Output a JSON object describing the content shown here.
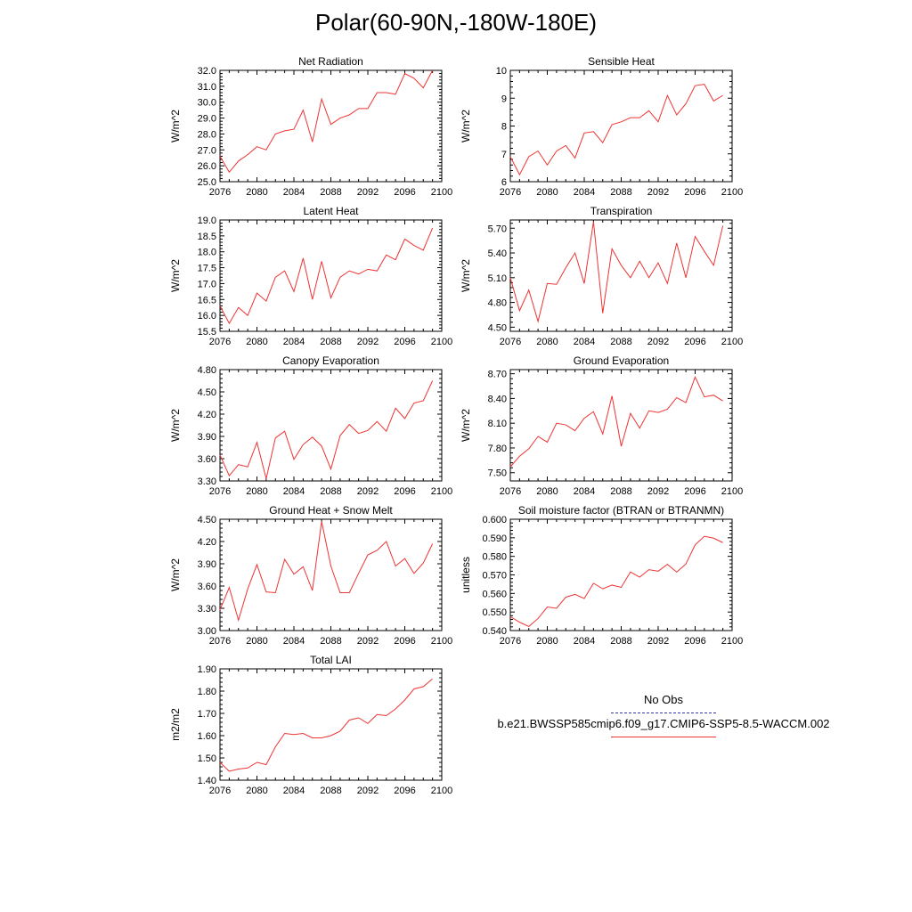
{
  "figure": {
    "title": "Polar(60-90N,-180W-180E)"
  },
  "legend": {
    "entries": [
      {
        "label": "No Obs",
        "color": "#3333aa",
        "style": "dashed"
      },
      {
        "label": "b.e21.BWSSP585cmip6.f09_g17.CMIP6-SSP5-8.5-WACCM.002",
        "color": "#ee3333",
        "style": "solid"
      }
    ]
  },
  "chart_data": [
    {
      "type": "line",
      "title": "Net Radiation",
      "ylabel": "W/m^2",
      "xlim": [
        2076,
        2100
      ],
      "ylim": [
        25.0,
        32.0
      ],
      "xticks": [
        2076,
        2080,
        2084,
        2088,
        2092,
        2096,
        2100
      ],
      "yticks": [
        25.0,
        26.0,
        27.0,
        28.0,
        29.0,
        30.0,
        31.0,
        32.0
      ],
      "ydec": 1,
      "series": [
        {
          "name": "b.e21.BWSSP585cmip6.f09_g17.CMIP6-SSP5-8.5-WACCM.002",
          "color": "#ee3333",
          "x": [
            2076,
            2077,
            2078,
            2079,
            2080,
            2081,
            2082,
            2083,
            2084,
            2085,
            2086,
            2087,
            2088,
            2089,
            2090,
            2091,
            2092,
            2093,
            2094,
            2095,
            2096,
            2097,
            2098,
            2099
          ],
          "values": [
            26.6,
            25.6,
            26.3,
            26.7,
            27.2,
            27.0,
            28.0,
            28.2,
            28.3,
            29.5,
            27.5,
            30.2,
            28.6,
            29.0,
            29.2,
            29.6,
            29.6,
            30.6,
            30.6,
            30.5,
            31.8,
            31.5,
            30.9,
            32.0
          ]
        }
      ]
    },
    {
      "type": "line",
      "title": "Sensible Heat",
      "ylabel": "W/m^2",
      "xlim": [
        2076,
        2100
      ],
      "ylim": [
        6,
        10
      ],
      "xticks": [
        2076,
        2080,
        2084,
        2088,
        2092,
        2096,
        2100
      ],
      "yticks": [
        6,
        7,
        8,
        9,
        10
      ],
      "ydec": 0,
      "series": [
        {
          "name": "b.e21.BWSSP585cmip6.f09_g17.CMIP6-SSP5-8.5-WACCM.002",
          "color": "#ee3333",
          "x": [
            2076,
            2077,
            2078,
            2079,
            2080,
            2081,
            2082,
            2083,
            2084,
            2085,
            2086,
            2087,
            2088,
            2089,
            2090,
            2091,
            2092,
            2093,
            2094,
            2095,
            2096,
            2097,
            2098,
            2099
          ],
          "values": [
            6.9,
            6.25,
            6.9,
            7.1,
            6.6,
            7.1,
            7.3,
            6.85,
            7.75,
            7.8,
            7.4,
            8.05,
            8.15,
            8.3,
            8.3,
            8.55,
            8.15,
            9.1,
            8.4,
            8.8,
            9.45,
            9.5,
            8.9,
            9.1
          ]
        }
      ]
    },
    {
      "type": "line",
      "title": "Latent Heat",
      "ylabel": "W/m^2",
      "xlim": [
        2076,
        2100
      ],
      "ylim": [
        15.5,
        19.0
      ],
      "xticks": [
        2076,
        2080,
        2084,
        2088,
        2092,
        2096,
        2100
      ],
      "yticks": [
        15.5,
        16.0,
        16.5,
        17.0,
        17.5,
        18.0,
        18.5,
        19.0
      ],
      "ydec": 1,
      "series": [
        {
          "name": "b.e21.BWSSP585cmip6.f09_g17.CMIP6-SSP5-8.5-WACCM.002",
          "color": "#ee3333",
          "x": [
            2076,
            2077,
            2078,
            2079,
            2080,
            2081,
            2082,
            2083,
            2084,
            2085,
            2086,
            2087,
            2088,
            2089,
            2090,
            2091,
            2092,
            2093,
            2094,
            2095,
            2096,
            2097,
            2098,
            2099
          ],
          "values": [
            16.3,
            15.75,
            16.25,
            16.0,
            16.7,
            16.45,
            17.2,
            17.4,
            16.75,
            17.8,
            16.5,
            17.7,
            16.55,
            17.2,
            17.4,
            17.3,
            17.45,
            17.4,
            17.9,
            17.75,
            18.4,
            18.2,
            18.05,
            18.75
          ]
        }
      ]
    },
    {
      "type": "line",
      "title": "Transpiration",
      "ylabel": "W/m^2",
      "xlim": [
        2076,
        2100
      ],
      "ylim": [
        4.45,
        5.8
      ],
      "xticks": [
        2076,
        2080,
        2084,
        2088,
        2092,
        2096,
        2100
      ],
      "yticks": [
        4.5,
        4.8,
        5.1,
        5.4,
        5.7
      ],
      "ydec": 2,
      "series": [
        {
          "name": "b.e21.BWSSP585cmip6.f09_g17.CMIP6-SSP5-8.5-WACCM.002",
          "color": "#ee3333",
          "x": [
            2076,
            2077,
            2078,
            2079,
            2080,
            2081,
            2082,
            2083,
            2084,
            2085,
            2086,
            2087,
            2088,
            2089,
            2090,
            2091,
            2092,
            2093,
            2094,
            2095,
            2096,
            2097,
            2098,
            2099
          ],
          "values": [
            5.1,
            4.7,
            4.95,
            4.57,
            5.03,
            5.02,
            5.22,
            5.4,
            5.03,
            5.78,
            4.67,
            5.45,
            5.25,
            5.1,
            5.3,
            5.1,
            5.28,
            5.03,
            5.52,
            5.1,
            5.6,
            5.42,
            5.25,
            5.73
          ]
        }
      ]
    },
    {
      "type": "line",
      "title": "Canopy Evaporation",
      "ylabel": "W/m^2",
      "xlim": [
        2076,
        2100
      ],
      "ylim": [
        3.3,
        4.8
      ],
      "xticks": [
        2076,
        2080,
        2084,
        2088,
        2092,
        2096,
        2100
      ],
      "yticks": [
        3.3,
        3.6,
        3.9,
        4.2,
        4.5,
        4.8
      ],
      "ydec": 2,
      "series": [
        {
          "name": "b.e21.BWSSP585cmip6.f09_g17.CMIP6-SSP5-8.5-WACCM.002",
          "color": "#ee3333",
          "x": [
            2076,
            2077,
            2078,
            2079,
            2080,
            2081,
            2082,
            2083,
            2084,
            2085,
            2086,
            2087,
            2088,
            2089,
            2090,
            2091,
            2092,
            2093,
            2094,
            2095,
            2096,
            2097,
            2098,
            2099
          ],
          "values": [
            3.65,
            3.37,
            3.52,
            3.49,
            3.82,
            3.33,
            3.88,
            3.97,
            3.59,
            3.79,
            3.89,
            3.77,
            3.46,
            3.91,
            4.06,
            3.94,
            3.98,
            4.1,
            3.97,
            4.28,
            4.14,
            4.35,
            4.38,
            4.65
          ]
        }
      ]
    },
    {
      "type": "line",
      "title": "Ground Evaporation",
      "ylabel": "W/m^2",
      "xlim": [
        2076,
        2100
      ],
      "ylim": [
        7.4,
        8.75
      ],
      "xticks": [
        2076,
        2080,
        2084,
        2088,
        2092,
        2096,
        2100
      ],
      "yticks": [
        7.5,
        7.8,
        8.1,
        8.4,
        8.7
      ],
      "ydec": 2,
      "series": [
        {
          "name": "b.e21.BWSSP585cmip6.f09_g17.CMIP6-SSP5-8.5-WACCM.002",
          "color": "#ee3333",
          "x": [
            2076,
            2077,
            2078,
            2079,
            2080,
            2081,
            2082,
            2083,
            2084,
            2085,
            2086,
            2087,
            2088,
            2089,
            2090,
            2091,
            2092,
            2093,
            2094,
            2095,
            2096,
            2097,
            2098,
            2099
          ],
          "values": [
            7.57,
            7.7,
            7.79,
            7.94,
            7.87,
            8.1,
            8.08,
            8.01,
            8.16,
            8.24,
            7.97,
            8.43,
            7.82,
            8.22,
            8.04,
            8.25,
            8.23,
            8.27,
            8.41,
            8.35,
            8.66,
            8.42,
            8.44,
            8.37
          ]
        }
      ]
    },
    {
      "type": "line",
      "title": "Ground Heat + Snow Melt",
      "ylabel": "W/m^2",
      "xlim": [
        2076,
        2100
      ],
      "ylim": [
        3.0,
        4.5
      ],
      "xticks": [
        2076,
        2080,
        2084,
        2088,
        2092,
        2096,
        2100
      ],
      "yticks": [
        3.0,
        3.3,
        3.6,
        3.9,
        4.2,
        4.5
      ],
      "ydec": 2,
      "series": [
        {
          "name": "b.e21.BWSSP585cmip6.f09_g17.CMIP6-SSP5-8.5-WACCM.002",
          "color": "#ee3333",
          "x": [
            2076,
            2077,
            2078,
            2079,
            2080,
            2081,
            2082,
            2083,
            2084,
            2085,
            2086,
            2087,
            2088,
            2089,
            2090,
            2091,
            2092,
            2093,
            2094,
            2095,
            2096,
            2097,
            2098,
            2099
          ],
          "values": [
            3.28,
            3.58,
            3.14,
            3.56,
            3.89,
            3.52,
            3.51,
            3.96,
            3.76,
            3.86,
            3.54,
            4.47,
            3.87,
            3.51,
            3.51,
            3.77,
            4.02,
            4.08,
            4.2,
            3.87,
            3.97,
            3.77,
            3.91,
            4.17
          ]
        }
      ]
    },
    {
      "type": "line",
      "title": "Soil moisture factor (BTRAN or BTRANMN)",
      "ylabel": "unitless",
      "xlim": [
        2076,
        2100
      ],
      "ylim": [
        0.54,
        0.6
      ],
      "xticks": [
        2076,
        2080,
        2084,
        2088,
        2092,
        2096,
        2100
      ],
      "yticks": [
        0.54,
        0.55,
        0.56,
        0.57,
        0.58,
        0.59,
        0.6
      ],
      "ydec": 3,
      "series": [
        {
          "name": "b.e21.BWSSP585cmip6.f09_g17.CMIP6-SSP5-8.5-WACCM.002",
          "color": "#ee3333",
          "x": [
            2076,
            2077,
            2078,
            2079,
            2080,
            2081,
            2082,
            2083,
            2084,
            2085,
            2086,
            2087,
            2088,
            2089,
            2090,
            2091,
            2092,
            2093,
            2094,
            2095,
            2096,
            2097,
            2098,
            2099
          ],
          "values": [
            0.5475,
            0.5445,
            0.5422,
            0.5465,
            0.5527,
            0.552,
            0.558,
            0.5595,
            0.5573,
            0.5655,
            0.5625,
            0.5645,
            0.5633,
            0.5716,
            0.5688,
            0.5728,
            0.572,
            0.5757,
            0.5715,
            0.5759,
            0.5862,
            0.5908,
            0.5898,
            0.5874
          ]
        }
      ]
    },
    {
      "type": "line",
      "title": "Total LAI",
      "ylabel": "m2/m2",
      "xlim": [
        2076,
        2100
      ],
      "ylim": [
        1.4,
        1.9
      ],
      "xticks": [
        2076,
        2080,
        2084,
        2088,
        2092,
        2096,
        2100
      ],
      "yticks": [
        1.4,
        1.5,
        1.6,
        1.7,
        1.8,
        1.9
      ],
      "ydec": 2,
      "series": [
        {
          "name": "b.e21.BWSSP585cmip6.f09_g17.CMIP6-SSP5-8.5-WACCM.002",
          "color": "#ee3333",
          "x": [
            2076,
            2077,
            2078,
            2079,
            2080,
            2081,
            2082,
            2083,
            2084,
            2085,
            2086,
            2087,
            2088,
            2089,
            2090,
            2091,
            2092,
            2093,
            2094,
            2095,
            2096,
            2097,
            2098,
            2099
          ],
          "values": [
            1.48,
            1.44,
            1.45,
            1.455,
            1.48,
            1.47,
            1.55,
            1.61,
            1.605,
            1.61,
            1.59,
            1.59,
            1.6,
            1.62,
            1.67,
            1.68,
            1.655,
            1.695,
            1.69,
            1.72,
            1.76,
            1.81,
            1.82,
            1.855
          ]
        }
      ]
    }
  ]
}
